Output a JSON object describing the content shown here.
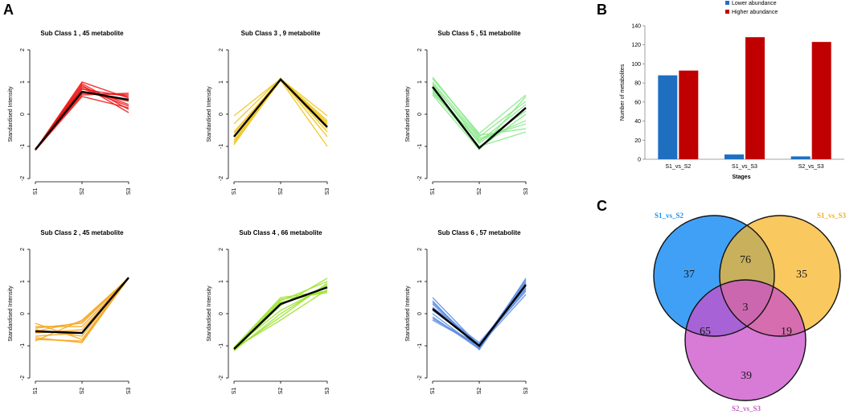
{
  "panels": {
    "a": "A",
    "b": "B",
    "c": "C"
  },
  "chart_data": [
    {
      "type": "line",
      "panel": "A",
      "ylabel": "Standardised Intensity",
      "x": [
        "S1",
        "S2",
        "S3"
      ],
      "ylim": [
        -2,
        2
      ],
      "yticks": [
        "-2",
        "-1",
        "0",
        "1",
        "2"
      ],
      "subclasses": [
        {
          "title": "Sub Class  1  , 45 metabolite",
          "color": "#ee1111",
          "mean": [
            -1.1,
            0.7,
            0.45
          ],
          "bundle": [
            [
              -1.12,
              0.95,
              0.15
            ],
            [
              -1.1,
              0.85,
              0.3
            ],
            [
              -1.08,
              0.78,
              0.55
            ],
            [
              -1.1,
              0.6,
              0.65
            ],
            [
              -1.12,
              0.55,
              0.2
            ],
            [
              -1.1,
              0.9,
              0.05
            ],
            [
              -1.08,
              0.7,
              0.4
            ],
            [
              -1.1,
              0.65,
              0.6
            ],
            [
              -1.12,
              0.8,
              0.25
            ],
            [
              -1.1,
              1.0,
              0.5
            ]
          ]
        },
        {
          "title": "Sub Class  3  , 9 metabolite",
          "color": "#f0c419",
          "mean": [
            -0.7,
            1.08,
            -0.4
          ],
          "bundle": [
            [
              -0.05,
              1.1,
              -0.2
            ],
            [
              -0.3,
              1.12,
              -0.35
            ],
            [
              -0.55,
              1.1,
              -0.55
            ],
            [
              -0.8,
              1.08,
              -0.7
            ],
            [
              -0.9,
              1.05,
              -1.0
            ],
            [
              -0.95,
              1.1,
              -0.05
            ],
            [
              -0.85,
              1.12,
              -0.3
            ],
            [
              -0.7,
              1.06,
              -0.25
            ],
            [
              -0.6,
              1.1,
              -0.45
            ]
          ]
        },
        {
          "title": "Sub Class  5  , 51 metabolite",
          "color": "#88e888",
          "mean": [
            0.85,
            -1.05,
            0.2
          ],
          "bundle": [
            [
              1.1,
              -0.6,
              0.6
            ],
            [
              1.0,
              -0.7,
              0.4
            ],
            [
              0.9,
              -0.75,
              -0.3
            ],
            [
              0.8,
              -0.9,
              0.1
            ],
            [
              0.7,
              -1.0,
              -0.55
            ],
            [
              0.6,
              -1.1,
              0.55
            ],
            [
              1.15,
              -0.65,
              -0.45
            ],
            [
              0.95,
              -0.85,
              0.3
            ],
            [
              0.75,
              -1.05,
              0.0
            ],
            [
              0.65,
              -0.8,
              -0.2
            ]
          ]
        },
        {
          "title": "Sub Class  2  , 45 metabolite",
          "color": "#f5a31a",
          "mean": [
            -0.55,
            -0.6,
            1.12
          ],
          "bundle": [
            [
              -0.3,
              -0.8,
              1.1
            ],
            [
              -0.45,
              -0.3,
              1.12
            ],
            [
              -0.6,
              -0.5,
              1.1
            ],
            [
              -0.75,
              -0.9,
              1.12
            ],
            [
              -0.85,
              -0.2,
              1.1
            ],
            [
              -0.5,
              -0.7,
              1.12
            ],
            [
              -0.4,
              -0.4,
              1.1
            ],
            [
              -0.7,
              -0.6,
              1.12
            ],
            [
              -0.8,
              -0.85,
              1.1
            ],
            [
              -0.55,
              -0.25,
              1.12
            ]
          ]
        },
        {
          "title": "Sub Class  4  , 66 metabolite",
          "color": "#9be22a",
          "mean": [
            -1.1,
            0.3,
            0.82
          ],
          "bundle": [
            [
              -1.05,
              0.5,
              0.7
            ],
            [
              -1.1,
              0.4,
              1.0
            ],
            [
              -1.15,
              0.0,
              0.9
            ],
            [
              -1.08,
              -0.2,
              0.75
            ],
            [
              -1.12,
              0.25,
              1.1
            ],
            [
              -1.1,
              0.45,
              0.65
            ],
            [
              -1.05,
              0.1,
              0.85
            ],
            [
              -1.15,
              0.3,
              0.8
            ],
            [
              -1.1,
              -0.1,
              0.95
            ],
            [
              -1.08,
              0.35,
              0.7
            ]
          ]
        },
        {
          "title": "Sub Class  6  , 57 metabolite",
          "color": "#5b8be0",
          "mean": [
            0.15,
            -1.0,
            0.9
          ],
          "bundle": [
            [
              0.5,
              -1.0,
              1.05
            ],
            [
              0.3,
              -1.05,
              0.9
            ],
            [
              0.1,
              -0.95,
              0.7
            ],
            [
              -0.1,
              -1.1,
              1.1
            ],
            [
              -0.2,
              -1.0,
              0.6
            ],
            [
              0.4,
              -1.12,
              0.95
            ],
            [
              0.2,
              -0.9,
              0.8
            ],
            [
              0.0,
              -1.08,
              1.0
            ],
            [
              -0.15,
              -0.98,
              0.75
            ],
            [
              0.35,
              -1.02,
              0.85
            ]
          ]
        }
      ]
    },
    {
      "type": "bar",
      "panel": "B",
      "categories": [
        "S1_vs_S2",
        "S1_vs_S3",
        "S2_vs_S3"
      ],
      "series": [
        {
          "name": "Lower abundance",
          "color": "#1f6fc1",
          "values": [
            88,
            5,
            3
          ]
        },
        {
          "name": "Higher abundance",
          "color": "#c00000",
          "values": [
            93,
            128,
            123
          ]
        }
      ],
      "xlabel": "Stages",
      "ylabel": "Number of metabolites",
      "ylim": [
        0,
        140
      ],
      "yticks": [
        0,
        20,
        40,
        60,
        80,
        100,
        120,
        140
      ],
      "legend": "top"
    },
    {
      "type": "venn",
      "panel": "C",
      "sets": [
        {
          "name": "S1_vs_S2",
          "color": "#1e8ff5",
          "label_color": "#1e8ff5"
        },
        {
          "name": "S1_vs_S3",
          "color": "#f7b52a",
          "label_color": "#f0b020"
        },
        {
          "name": "S2_vs_S3",
          "color": "#c94fc9",
          "label_color": "#c060c0"
        }
      ],
      "counts": {
        "only_a": "37",
        "only_b": "35",
        "only_c": "39",
        "ab": "76",
        "ac": "65",
        "bc": "19",
        "abc": "3"
      }
    }
  ]
}
